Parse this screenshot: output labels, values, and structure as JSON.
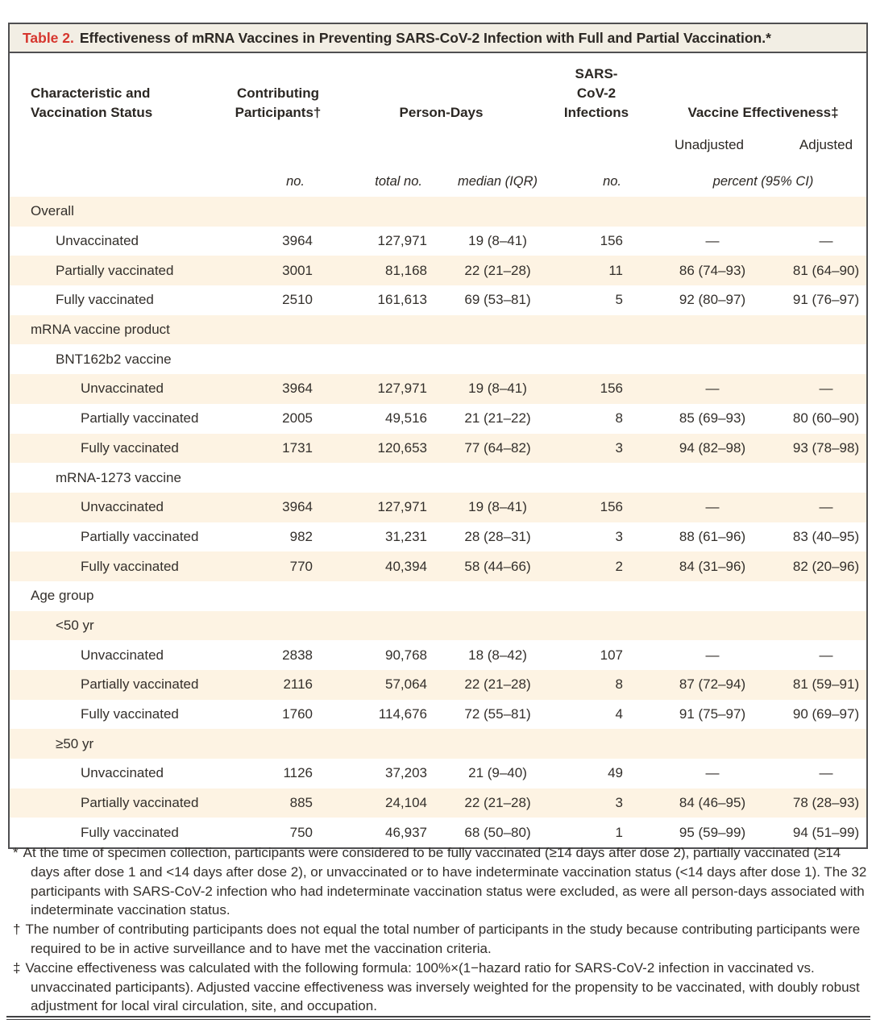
{
  "colors": {
    "accent_red": "#d6362e",
    "stripe_bg": "#fdf3e3",
    "titlebar_bg": "#f2eee4",
    "border_color": "#4f4f51"
  },
  "table": {
    "title_label": "Table 2.",
    "title_caption": "Effectiveness of mRNA Vaccines in Preventing SARS-CoV-2 Infection with Full and Partial Vaccination.*",
    "header": {
      "characteristic_line1": "Characteristic and",
      "characteristic_line2": "Vaccination Status",
      "participants_line1": "Contributing",
      "participants_line2": "Participants†",
      "person_days": "Person-Days",
      "infections_line1": "SARS-CoV-2",
      "infections_line2": "Infections",
      "vaccine_effectiveness": "Vaccine Effectiveness‡",
      "unadjusted": "Unadjusted",
      "adjusted": "Adjusted",
      "unit_no_participants": "no.",
      "unit_total_no": "total no.",
      "unit_median": "median (IQR)",
      "unit_no_infections": "no.",
      "unit_percent": "percent (95% CI)"
    },
    "rows": [
      {
        "label": "Overall",
        "indent": 0
      },
      {
        "label": "Unvaccinated",
        "indent": 1,
        "participants": "3964",
        "person_days_total": "127,971",
        "person_days_median": "19 (8–41)",
        "infections": "156",
        "ve_unadjusted": "—",
        "ve_adjusted": "—"
      },
      {
        "label": "Partially vaccinated",
        "indent": 1,
        "participants": "3001",
        "person_days_total": "81,168",
        "person_days_median": "22 (21–28)",
        "infections": "11",
        "ve_unadjusted": "86 (74–93)",
        "ve_adjusted": "81 (64–90)"
      },
      {
        "label": "Fully vaccinated",
        "indent": 1,
        "participants": "2510",
        "person_days_total": "161,613",
        "person_days_median": "69 (53–81)",
        "infections": "5",
        "ve_unadjusted": "92 (80–97)",
        "ve_adjusted": "91 (76–97)"
      },
      {
        "label": "mRNA vaccine product",
        "indent": 0
      },
      {
        "label": "BNT162b2 vaccine",
        "indent": 1
      },
      {
        "label": "Unvaccinated",
        "indent": 2,
        "participants": "3964",
        "person_days_total": "127,971",
        "person_days_median": "19 (8–41)",
        "infections": "156",
        "ve_unadjusted": "—",
        "ve_adjusted": "—"
      },
      {
        "label": "Partially vaccinated",
        "indent": 2,
        "participants": "2005",
        "person_days_total": "49,516",
        "person_days_median": "21 (21–22)",
        "infections": "8",
        "ve_unadjusted": "85 (69–93)",
        "ve_adjusted": "80 (60–90)"
      },
      {
        "label": "Fully vaccinated",
        "indent": 2,
        "participants": "1731",
        "person_days_total": "120,653",
        "person_days_median": "77 (64–82)",
        "infections": "3",
        "ve_unadjusted": "94 (82–98)",
        "ve_adjusted": "93 (78–98)"
      },
      {
        "label": "mRNA-1273 vaccine",
        "indent": 1
      },
      {
        "label": "Unvaccinated",
        "indent": 2,
        "participants": "3964",
        "person_days_total": "127,971",
        "person_days_median": "19 (8–41)",
        "infections": "156",
        "ve_unadjusted": "—",
        "ve_adjusted": "—"
      },
      {
        "label": "Partially vaccinated",
        "indent": 2,
        "participants": "982",
        "person_days_total": "31,231",
        "person_days_median": "28 (28–31)",
        "infections": "3",
        "ve_unadjusted": "88 (61–96)",
        "ve_adjusted": "83 (40–95)"
      },
      {
        "label": "Fully vaccinated",
        "indent": 2,
        "participants": "770",
        "person_days_total": "40,394",
        "person_days_median": "58 (44–66)",
        "infections": "2",
        "ve_unadjusted": "84 (31–96)",
        "ve_adjusted": "82 (20–96)"
      },
      {
        "label": "Age group",
        "indent": 0
      },
      {
        "label": "<50 yr",
        "indent": 1
      },
      {
        "label": "Unvaccinated",
        "indent": 2,
        "participants": "2838",
        "person_days_total": "90,768",
        "person_days_median": "18 (8–42)",
        "infections": "107",
        "ve_unadjusted": "—",
        "ve_adjusted": "—"
      },
      {
        "label": "Partially vaccinated",
        "indent": 2,
        "participants": "2116",
        "person_days_total": "57,064",
        "person_days_median": "22 (21–28)",
        "infections": "8",
        "ve_unadjusted": "87 (72–94)",
        "ve_adjusted": "81 (59–91)"
      },
      {
        "label": "Fully vaccinated",
        "indent": 2,
        "participants": "1760",
        "person_days_total": "114,676",
        "person_days_median": "72 (55–81)",
        "infections": "4",
        "ve_unadjusted": "91 (75–97)",
        "ve_adjusted": "90 (69–97)"
      },
      {
        "label": "≥50 yr",
        "indent": 1
      },
      {
        "label": "Unvaccinated",
        "indent": 2,
        "participants": "1126",
        "person_days_total": "37,203",
        "person_days_median": "21 (9–40)",
        "infections": "49",
        "ve_unadjusted": "—",
        "ve_adjusted": "—"
      },
      {
        "label": "Partially vaccinated",
        "indent": 2,
        "participants": "885",
        "person_days_total": "24,104",
        "person_days_median": "22 (21–28)",
        "infections": "3",
        "ve_unadjusted": "84 (46–95)",
        "ve_adjusted": "78 (28–93)"
      },
      {
        "label": "Fully vaccinated",
        "indent": 2,
        "participants": "750",
        "person_days_total": "46,937",
        "person_days_median": "68 (50–80)",
        "infections": "1",
        "ve_unadjusted": "95 (59–99)",
        "ve_adjusted": "94 (51–99)"
      }
    ]
  },
  "footnotes": [
    {
      "marker": "*",
      "text": "At the time of specimen collection, participants were considered to be fully vaccinated (≥14 days after dose 2), partially vaccinated (≥14 days after dose 1 and <14 days after dose 2), or unvaccinated or to have indeterminate vaccination status (<14 days after dose 1). The 32 participants with SARS-CoV-2 infection who had indeterminate vaccination status were excluded, as were all person-days associated with indeterminate vaccination status."
    },
    {
      "marker": "†",
      "text": "The number of contributing participants does not equal the total number of participants in the study because contributing participants were required to be in active surveillance and to have met the vaccination criteria."
    },
    {
      "marker": "‡",
      "text": "Vaccine effectiveness was calculated with the following formula: 100%×(1−hazard ratio for SARS-CoV-2 infection in vaccinated vs. unvaccinated participants). Adjusted vaccine effectiveness was inversely weighted for the propensity to be vaccinated, with doubly robust adjustment for local viral circulation, site, and occupation."
    }
  ]
}
